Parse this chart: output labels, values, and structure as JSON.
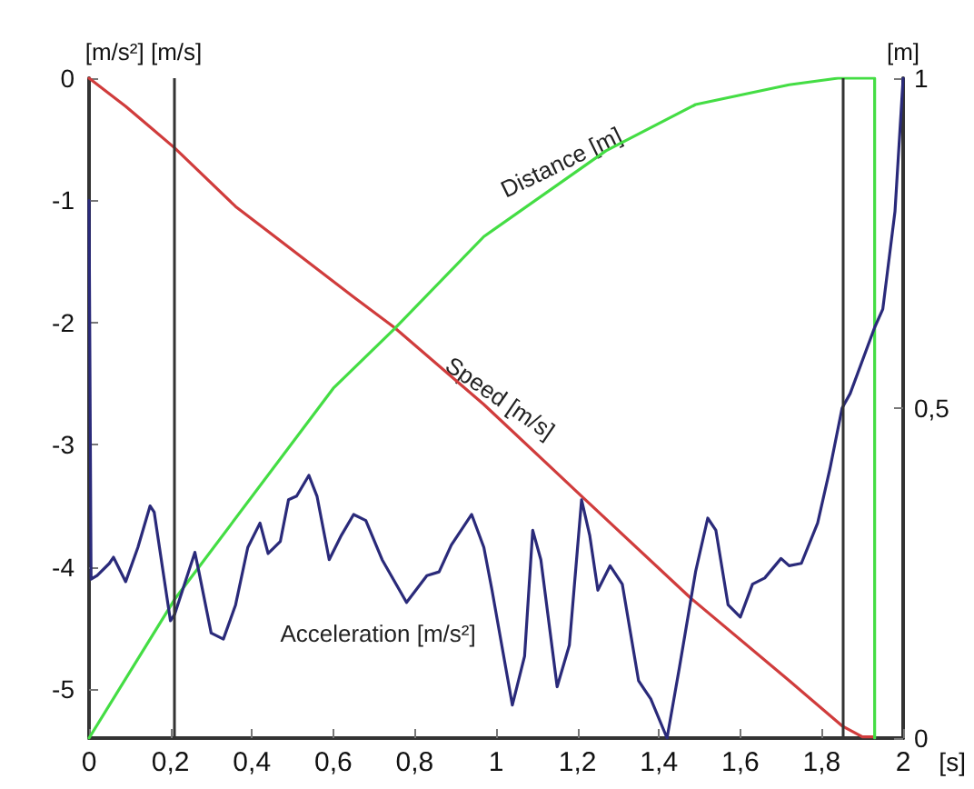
{
  "chart_data": {
    "type": "line",
    "xlabel": "[s]",
    "ylabel": "[m/s²] [m/s]",
    "y2label": "[m]",
    "xlim": [
      0,
      2
    ],
    "xticks": [
      0,
      {
        "value": 0.2,
        "label": "0,2"
      },
      {
        "value": 0.4,
        "label": "0,4"
      },
      {
        "value": 0.6,
        "label": "0,6"
      },
      {
        "value": 0.8,
        "label": "0,8"
      },
      1,
      {
        "value": 1.2,
        "label": "1,2"
      },
      {
        "value": 1.4,
        "label": "1,4"
      },
      {
        "value": 1.6,
        "label": "1,6"
      },
      {
        "value": 1.8,
        "label": "1,8"
      },
      2
    ],
    "ylim": [
      -5.4,
      0
    ],
    "yticks": [
      0,
      -1,
      -2,
      -3,
      -4,
      -5
    ],
    "y2lim": [
      0,
      1
    ],
    "y2ticks": [
      0,
      {
        "value": 0.5,
        "label": "0,5"
      },
      1
    ],
    "grid": false,
    "marker": "none",
    "line_style": "solid",
    "series": [
      {
        "name": "Speed [m/s]",
        "color": "#d03c3c",
        "x": [
          0,
          0.09,
          0.15,
          0.21,
          0.36,
          0.65,
          0.75,
          0.97,
          1.21,
          1.48,
          1.72,
          1.85,
          1.9,
          1.93
        ],
        "values": [
          0,
          -0.23,
          -0.4,
          -0.57,
          -1.05,
          -1.79,
          -2.04,
          -2.67,
          -3.42,
          -4.26,
          -4.93,
          -5.3,
          -5.39,
          -5.39
        ]
      },
      {
        "name": "Distance [m]",
        "color": "#44dd44",
        "axis": "y2",
        "x": [
          0,
          0.21,
          0.6,
          0.75,
          0.97,
          1.27,
          1.49,
          1.72,
          1.84,
          1.93,
          1.93
        ],
        "values": [
          0,
          0.21,
          0.53,
          0.62,
          0.76,
          0.89,
          0.96,
          0.99,
          1,
          1,
          0
        ]
      },
      {
        "name": "Acceleration [m/s²]",
        "color": "#2a2a7a",
        "x": [
          0,
          0.005,
          0.02,
          0.05,
          0.06,
          0.09,
          0.12,
          0.15,
          0.16,
          0.2,
          0.21,
          0.26,
          0.27,
          0.3,
          0.33,
          0.36,
          0.39,
          0.42,
          0.44,
          0.47,
          0.49,
          0.51,
          0.54,
          0.56,
          0.59,
          0.62,
          0.65,
          0.68,
          0.72,
          0.78,
          0.83,
          0.86,
          0.89,
          0.94,
          0.97,
          0.99,
          1.04,
          1.07,
          1.09,
          1.11,
          1.15,
          1.18,
          1.21,
          1.23,
          1.25,
          1.28,
          1.31,
          1.35,
          1.38,
          1.42,
          1.45,
          1.49,
          1.52,
          1.54,
          1.57,
          1.6,
          1.63,
          1.66,
          1.7,
          1.72,
          1.75,
          1.79,
          1.82,
          1.85,
          1.87,
          1.93,
          1.95,
          1.98,
          2
        ],
        "values": [
          -1,
          -4.1,
          -4.07,
          -3.97,
          -3.92,
          -4.12,
          -3.84,
          -3.5,
          -3.55,
          -4.44,
          -4.39,
          -3.88,
          -4.04,
          -4.54,
          -4.59,
          -4.31,
          -3.84,
          -3.64,
          -3.89,
          -3.79,
          -3.45,
          -3.42,
          -3.25,
          -3.42,
          -3.94,
          -3.74,
          -3.57,
          -3.62,
          -3.94,
          -4.29,
          -4.07,
          -4.04,
          -3.82,
          -3.57,
          -3.84,
          -4.19,
          -5.13,
          -4.73,
          -3.7,
          -3.94,
          -4.98,
          -4.64,
          -3.45,
          -3.74,
          -4.19,
          -3.99,
          -4.14,
          -4.93,
          -5.08,
          -5.4,
          -4.83,
          -4.04,
          -3.6,
          -3.7,
          -4.31,
          -4.41,
          -4.14,
          -4.09,
          -3.93,
          -3.99,
          -3.97,
          -3.64,
          -3.2,
          -2.7,
          -2.58,
          -2.04,
          -1.89,
          -1.09,
          0
        ]
      }
    ],
    "ref_lines": [
      {
        "axis": "x",
        "value": 0.21,
        "color": "#333333"
      },
      {
        "axis": "x",
        "value": 1.85,
        "color": "#333333"
      }
    ]
  }
}
